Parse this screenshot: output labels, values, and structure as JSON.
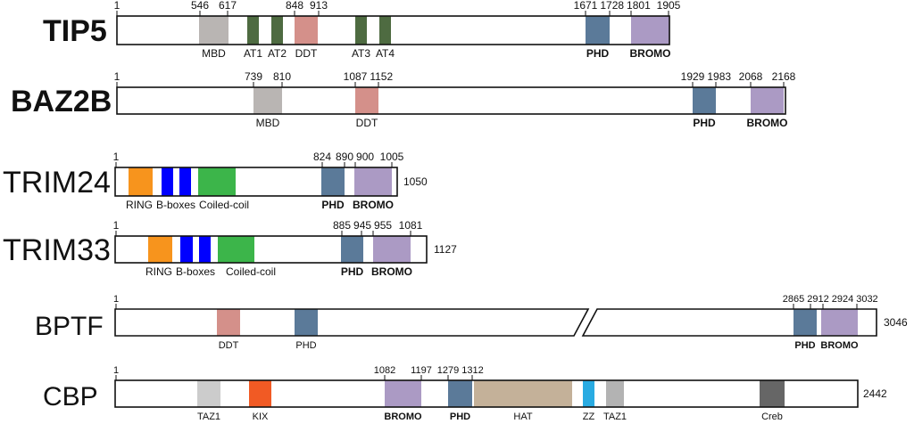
{
  "proteins": [
    {
      "name": "TIP5",
      "length_label": "",
      "ticks": [
        "1",
        "546",
        "617",
        "848",
        "913",
        "1671",
        "1728",
        "1801",
        "1905"
      ],
      "domains": [
        {
          "label": "MBD",
          "color": "#b9b5b3",
          "bold": false
        },
        {
          "label": "AT1",
          "color": "#4e6b41",
          "bold": false
        },
        {
          "label": "AT2",
          "color": "#4e6b41",
          "bold": false
        },
        {
          "label": "DDT",
          "color": "#d4908a",
          "bold": false
        },
        {
          "label": "AT3",
          "color": "#4e6b41",
          "bold": false
        },
        {
          "label": "AT4",
          "color": "#4e6b41",
          "bold": false
        },
        {
          "label": "PHD",
          "color": "#5b7a99",
          "bold": true
        },
        {
          "label": "BROMO",
          "color": "#ab9ac4",
          "bold": true
        }
      ]
    },
    {
      "name": "BAZ2B",
      "length_label": "",
      "ticks": [
        "1",
        "739",
        "810",
        "1087",
        "1152",
        "1929",
        "1983",
        "2068",
        "2168"
      ],
      "domains": [
        {
          "label": "MBD",
          "color": "#b9b5b3",
          "bold": false
        },
        {
          "label": "DDT",
          "color": "#d4908a",
          "bold": false
        },
        {
          "label": "PHD",
          "color": "#5b7a99",
          "bold": true
        },
        {
          "label": "BROMO",
          "color": "#ab9ac4",
          "bold": true
        }
      ]
    },
    {
      "name": "TRIM24",
      "length_label": "1050",
      "ticks": [
        "1",
        "824",
        "890",
        "900",
        "1005"
      ],
      "domains": [
        {
          "label": "RING",
          "color": "#f7941d",
          "bold": false
        },
        {
          "label": "B-boxes",
          "color": "#0000ff",
          "bold": false
        },
        {
          "label": "",
          "color": "#0000ff",
          "bold": false
        },
        {
          "label": "Coiled-coil",
          "color": "#3cb54a",
          "bold": false
        },
        {
          "label": "PHD",
          "color": "#5b7a99",
          "bold": true
        },
        {
          "label": "BROMO",
          "color": "#ab9ac4",
          "bold": true
        }
      ]
    },
    {
      "name": "TRIM33",
      "length_label": "1127",
      "ticks": [
        "1",
        "885",
        "945",
        "955",
        "1081"
      ],
      "domains": [
        {
          "label": "RING",
          "color": "#f7941d",
          "bold": false
        },
        {
          "label": "B-boxes",
          "color": "#0000ff",
          "bold": false
        },
        {
          "label": "",
          "color": "#0000ff",
          "bold": false
        },
        {
          "label": "Coiled-coil",
          "color": "#3cb54a",
          "bold": false
        },
        {
          "label": "PHD",
          "color": "#5b7a99",
          "bold": true
        },
        {
          "label": "BROMO",
          "color": "#ab9ac4",
          "bold": true
        }
      ]
    },
    {
      "name": "BPTF",
      "length_label": "3046",
      "ticks": [
        "1",
        "2865",
        "2912",
        "2924",
        "3032"
      ],
      "domains": [
        {
          "label": "DDT",
          "color": "#d4908a",
          "bold": false
        },
        {
          "label": "PHD",
          "color": "#5b7a99",
          "bold": false
        },
        {
          "label": "PHD",
          "color": "#5b7a99",
          "bold": true
        },
        {
          "label": "BROMO",
          "color": "#ab9ac4",
          "bold": true
        }
      ]
    },
    {
      "name": "CBP",
      "length_label": "2442",
      "ticks": [
        "1",
        "1082",
        "1197",
        "1279",
        "1312"
      ],
      "domains": [
        {
          "label": "TAZ1",
          "color": "#cccccc",
          "bold": false
        },
        {
          "label": "KIX",
          "color": "#f15a24",
          "bold": false
        },
        {
          "label": "BROMO",
          "color": "#ab9ac4",
          "bold": true
        },
        {
          "label": "PHD",
          "color": "#5b7a99",
          "bold": true
        },
        {
          "label": "HAT",
          "color": "#c4b199",
          "bold": false
        },
        {
          "label": "ZZ",
          "color": "#29abe2",
          "bold": false
        },
        {
          "label": "TAZ1",
          "color": "#b3b3b3",
          "bold": false
        },
        {
          "label": "Creb",
          "color": "#666666",
          "bold": false
        }
      ]
    }
  ]
}
